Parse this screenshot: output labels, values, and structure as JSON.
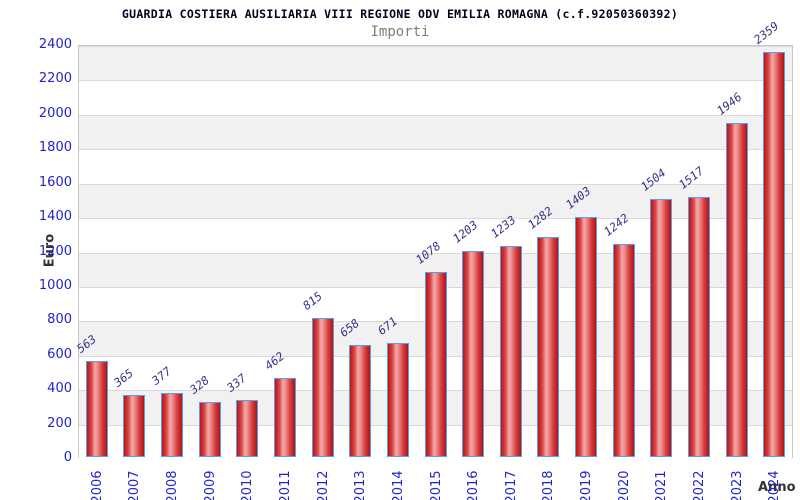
{
  "chart_data": {
    "type": "bar",
    "title": "GUARDIA COSTIERA AUSILIARIA VIII REGIONE ODV EMILIA ROMAGNA (c.f.92050360392)",
    "subtitle": "Importi",
    "xlabel": "Anno",
    "ylabel": "Euro",
    "categories": [
      "2006",
      "2007",
      "2008",
      "2009",
      "2010",
      "2011",
      "2012",
      "2013",
      "2014",
      "2015",
      "2016",
      "2017",
      "2018",
      "2019",
      "2020",
      "2021",
      "2022",
      "2023",
      "2024"
    ],
    "values": [
      563,
      365,
      377,
      328,
      337,
      462,
      815,
      658,
      671,
      1078,
      1203,
      1233,
      1282,
      1403,
      1242,
      1504,
      1517,
      1946,
      2359
    ],
    "ylim": [
      0,
      2400
    ],
    "ytick_step": 200,
    "yticks": [
      0,
      200,
      400,
      600,
      800,
      1000,
      1200,
      1400,
      1600,
      1800,
      2000,
      2200,
      2400
    ],
    "grid": "horizontal-bands",
    "legend": "none",
    "colors": {
      "title": "#00001e",
      "subtitle": "#7d7d7d",
      "tick_label": "#2323cc",
      "value_label": "#343488",
      "axis_label": "#333333",
      "bar_border": "#55a0e8",
      "bar_dark": "#b81717",
      "bar_light": "#f4a8a8",
      "band_gray": "#f1f1f1",
      "band_white": "#ffffff",
      "grid_line": "#d9d9d9"
    }
  }
}
